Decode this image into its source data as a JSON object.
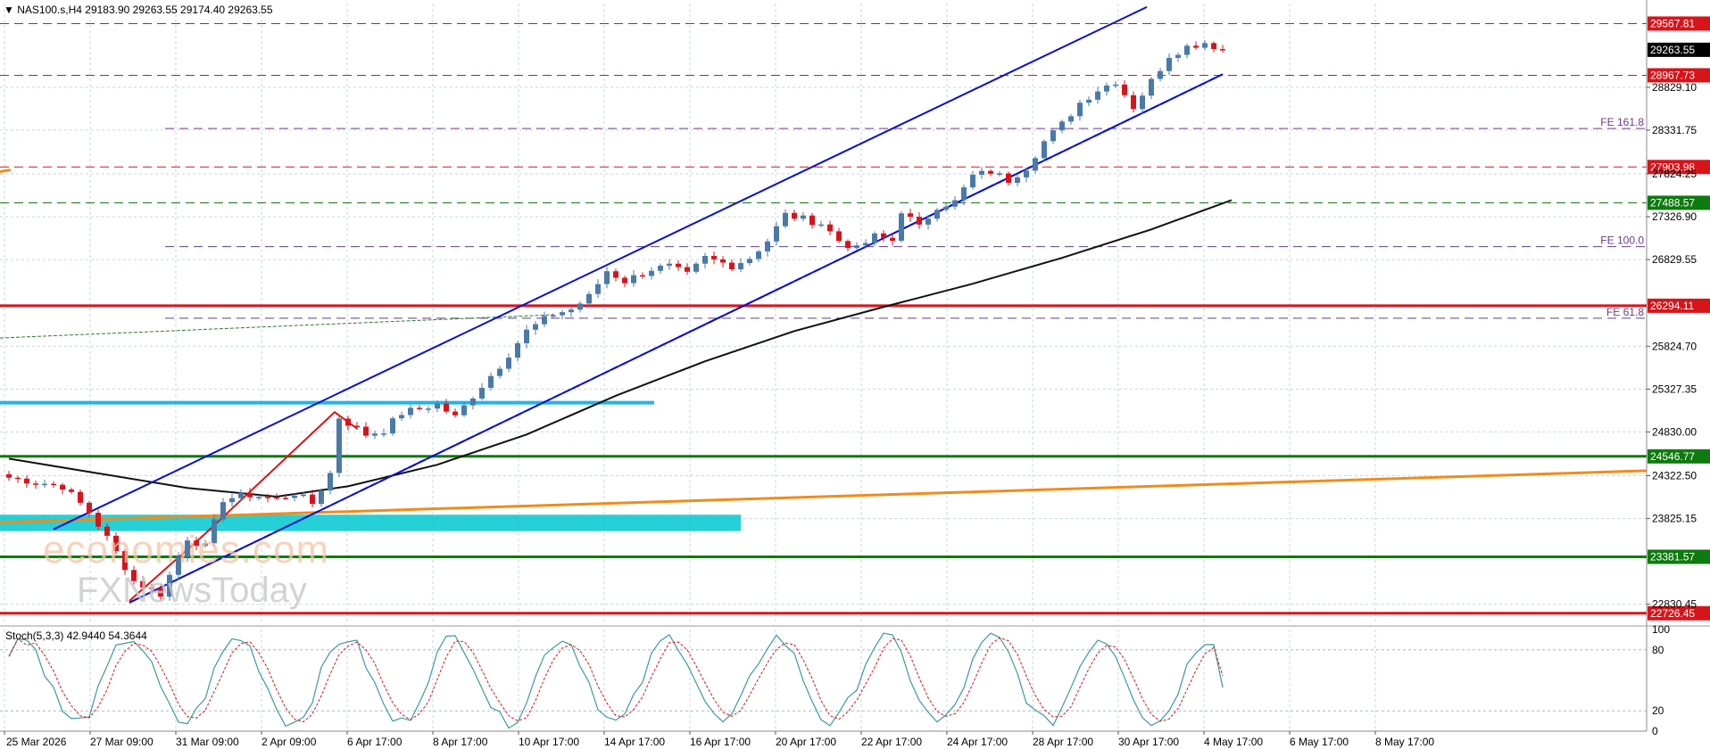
{
  "header": {
    "symbol": "NAS100.s,H4",
    "ohlc": "29183.90 29263.55 29174.40 29263.55"
  },
  "stoch_header": "Stoch(5,3,3) 42.9440 54.3644",
  "watermark": {
    "line1": "economies.com",
    "line2": "FXNewsToday"
  },
  "colors": {
    "background": "#ffffff",
    "bull": "#4a7aa8",
    "bear": "#d8141b",
    "channel": "#0b12c8",
    "support_green": "#0f7a0f",
    "resistance_red": "#d8141b",
    "cyan_line": "#22b5e6",
    "cyan_zone": "#00c8d0",
    "orange_line": "#f08c1a",
    "ma_black": "#111111",
    "fib": "#6a3a8a",
    "stoch_main": "#3a9aa0",
    "stoch_signal": "#d8141b"
  },
  "chart_data": {
    "type": "candlestick",
    "instrument": "NAS100.s",
    "timeframe": "H4",
    "last_price": 29263.55,
    "ylim": [
      22600,
      29800
    ],
    "y_ticks": [
      22830.45,
      23825.15,
      24322.5,
      24830.0,
      25327.35,
      25824.7,
      26829.55,
      27326.9,
      27824.25,
      28331.75,
      28829.1
    ],
    "x_labels": [
      "25 Mar 2026",
      "27 Mar 09:00",
      "31 Mar 09:00",
      "2 Apr 09:00",
      "6 Apr 17:00",
      "8 Apr 17:00",
      "10 Apr 17:00",
      "14 Apr 17:00",
      "16 Apr 17:00",
      "20 Apr 17:00",
      "22 Apr 17:00",
      "24 Apr 17:00",
      "28 Apr 17:00",
      "30 Apr 17:00",
      "4 May 17:00",
      "6 May 17:00",
      "8 May 17:00"
    ],
    "price_path": [
      [
        0,
        24300
      ],
      [
        6,
        24200
      ],
      [
        9,
        23900
      ],
      [
        11,
        23600
      ],
      [
        14,
        23100
      ],
      [
        17,
        22950
      ],
      [
        20,
        23600
      ],
      [
        22,
        23500
      ],
      [
        24,
        24050
      ],
      [
        27,
        24100
      ],
      [
        30,
        24050
      ],
      [
        32,
        24120
      ],
      [
        34,
        24000
      ],
      [
        36,
        24350
      ],
      [
        37,
        25000
      ],
      [
        40,
        24800
      ],
      [
        42,
        24850
      ],
      [
        44,
        25050
      ],
      [
        48,
        25150
      ],
      [
        50,
        25000
      ],
      [
        52,
        25250
      ],
      [
        55,
        25600
      ],
      [
        58,
        26000
      ],
      [
        61,
        26200
      ],
      [
        63,
        26250
      ],
      [
        65,
        26400
      ],
      [
        67,
        26700
      ],
      [
        69,
        26580
      ],
      [
        72,
        26720
      ],
      [
        74,
        26750
      ],
      [
        76,
        26650
      ],
      [
        78,
        26850
      ],
      [
        81,
        26760
      ],
      [
        83,
        26850
      ],
      [
        85,
        27050
      ],
      [
        87,
        27350
      ],
      [
        89,
        27300
      ],
      [
        91,
        27250
      ],
      [
        93,
        27050
      ],
      [
        95,
        26950
      ],
      [
        97,
        27100
      ],
      [
        99,
        27050
      ],
      [
        100,
        27400
      ],
      [
        102,
        27200
      ],
      [
        104,
        27450
      ],
      [
        106,
        27500
      ],
      [
        108,
        27800
      ],
      [
        110,
        27850
      ],
      [
        112,
        27750
      ],
      [
        114,
        27900
      ],
      [
        116,
        28200
      ],
      [
        118,
        28400
      ],
      [
        120,
        28650
      ],
      [
        122,
        28800
      ],
      [
        124,
        28900
      ],
      [
        126,
        28600
      ],
      [
        128,
        28900
      ],
      [
        130,
        29200
      ],
      [
        132,
        29300
      ],
      [
        134,
        29350
      ],
      [
        136,
        29263.55
      ]
    ],
    "candle_count": 137,
    "horizontal_levels": [
      {
        "price": 29567.81,
        "label": "29567.81",
        "style": "dashed",
        "color": "#d8141b"
      },
      {
        "price": 28967.73,
        "label": "28967.73",
        "style": "dashed",
        "color": "#d8141b"
      },
      {
        "price": 27903.98,
        "label": "27903.98",
        "style": "dashed",
        "color": "#d8141b"
      },
      {
        "price": 27488.57,
        "label": "27488.57",
        "style": "dashed",
        "color": "#0f7a0f"
      },
      {
        "price": 26294.11,
        "label": "26294.11",
        "style": "solid",
        "color": "#d8141b"
      },
      {
        "price": 24546.77,
        "label": "24546.77",
        "style": "solid",
        "color": "#0f7a0f"
      },
      {
        "price": 23381.57,
        "label": "23381.57",
        "style": "solid",
        "color": "#0f7a0f"
      },
      {
        "price": 22726.45,
        "label": "22726.45",
        "style": "solid",
        "color": "#d8141b"
      }
    ],
    "fibonacci": [
      {
        "price": 28350,
        "label": "FE 161.8"
      },
      {
        "price": 26980,
        "label": "FE 100.0"
      },
      {
        "price": 26150,
        "label": "FE 61.8"
      }
    ],
    "stochastic": {
      "params": "5,3,3",
      "main": 42.944,
      "signal": 54.3644,
      "levels": [
        80,
        20
      ],
      "ylim": [
        0,
        100
      ],
      "y_ticks": [
        100,
        80,
        20,
        0
      ]
    }
  }
}
